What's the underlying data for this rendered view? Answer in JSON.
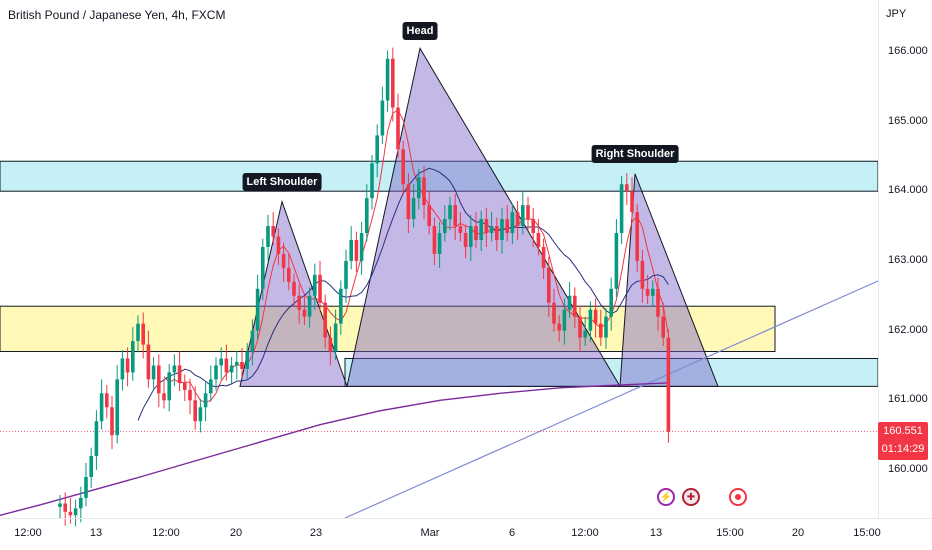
{
  "header": {
    "symbol_title": "British Pound / Japanese Yen, 4h, FXCM",
    "currency": "JPY"
  },
  "price_tag": {
    "price": "160.551",
    "countdown": "01:14:29"
  },
  "pattern_labels": {
    "left_shoulder": "Left Shoulder",
    "head": "Head",
    "right_shoulder": "Right Shoulder"
  },
  "icons": [
    "lightning-icon",
    "uk-flag-icon",
    "record-icon"
  ],
  "colors": {
    "up": "#089981",
    "down": "#f23645",
    "pattern_fill": "#7b61c7",
    "resistance_zone": "#b2ebf2",
    "support_zone": "#fff59d",
    "ma_fast": "#f23645",
    "ma_mid": "#2a2e7f",
    "ma_slow": "#7b2a9b",
    "trendline": "#7e8bd6"
  },
  "chart_data": {
    "type": "candlestick",
    "title": "British Pound / Japanese Yen, 4h, FXCM",
    "ylabel": "JPY",
    "ylim": [
      159.3,
      166.8
    ],
    "y_ticks": [
      "166.000",
      "165.000",
      "164.000",
      "163.000",
      "162.000",
      "161.000",
      "160.000"
    ],
    "x_ticks": [
      "12:00",
      "13",
      "12:00",
      "20",
      "23",
      "Mar",
      "6",
      "12:00",
      "13",
      "15:00",
      "20",
      "15:00"
    ],
    "zones": [
      {
        "name": "resistance",
        "from": 164.0,
        "to": 164.43
      },
      {
        "name": "range",
        "from": 161.7,
        "to": 162.35
      },
      {
        "name": "support",
        "from": 161.2,
        "to": 161.6
      }
    ],
    "pattern": {
      "type": "head-and-shoulders",
      "left_shoulder": 163.85,
      "head": 166.05,
      "right_shoulder": 164.25,
      "neckline_low": 161.2
    },
    "last_price": 160.551,
    "series": [
      {
        "name": "candles",
        "closes": [
          159.52,
          159.4,
          159.35,
          159.45,
          159.6,
          159.9,
          160.2,
          160.7,
          161.1,
          160.9,
          160.5,
          161.3,
          161.6,
          161.4,
          161.85,
          162.1,
          161.8,
          161.3,
          161.5,
          161.1,
          161.0,
          161.4,
          161.5,
          161.25,
          161.15,
          161.0,
          160.7,
          160.9,
          161.1,
          161.3,
          161.5,
          161.6,
          161.4,
          161.5,
          161.55,
          161.45,
          161.7,
          162.0,
          162.6,
          163.2,
          163.5,
          163.35,
          163.1,
          162.9,
          162.7,
          162.5,
          162.3,
          162.2,
          162.5,
          162.8,
          162.4,
          161.9,
          161.7,
          162.1,
          162.6,
          163.0,
          163.3,
          163.0,
          163.4,
          163.9,
          164.4,
          164.8,
          165.3,
          165.9,
          165.2,
          164.6,
          164.1,
          163.6,
          163.9,
          164.2,
          163.8,
          163.5,
          163.1,
          163.4,
          163.6,
          163.8,
          163.5,
          163.4,
          163.2,
          163.5,
          163.3,
          163.6,
          163.4,
          163.5,
          163.3,
          163.6,
          163.4,
          163.7,
          163.5,
          163.8,
          163.6,
          163.4,
          163.2,
          162.9,
          162.4,
          162.1,
          162.0,
          162.3,
          162.5,
          162.2,
          161.9,
          162.0,
          162.3,
          162.1,
          161.9,
          162.2,
          162.6,
          163.4,
          164.1,
          164.0,
          163.7,
          163.0,
          162.6,
          162.5,
          162.6,
          162.2,
          161.9,
          160.55
        ]
      },
      {
        "name": "ma_fast"
      },
      {
        "name": "ma_mid"
      },
      {
        "name": "ma_slow",
        "points": [
          [
            0,
            159.35
          ],
          [
            40,
            159.5
          ],
          [
            90,
            159.7
          ],
          [
            140,
            159.9
          ],
          [
            200,
            160.15
          ],
          [
            260,
            160.4
          ],
          [
            320,
            160.65
          ],
          [
            380,
            160.85
          ],
          [
            440,
            161.0
          ],
          [
            500,
            161.1
          ],
          [
            560,
            161.18
          ],
          [
            620,
            161.22
          ],
          [
            668,
            161.25
          ]
        ]
      }
    ]
  }
}
